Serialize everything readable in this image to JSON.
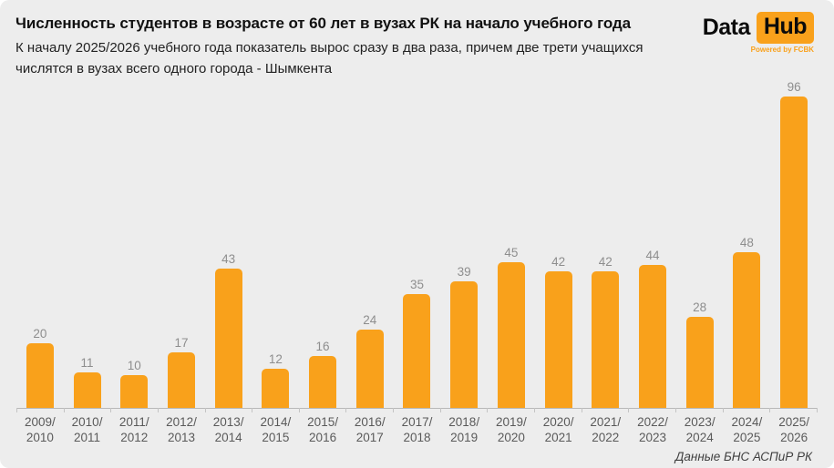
{
  "header": {
    "title": "Численность студентов в возрасте от 60 лет в вузах РК на начало учебного года",
    "subtitle": "К началу 2025/2026 учебного года показатель вырос сразу в два раза, причем две трети учащихся числятся в вузах всего одного города - Шымкента"
  },
  "logo": {
    "part1": "Data",
    "part2": "Hub",
    "tagline": "Powered by FCBK"
  },
  "footer": {
    "source": "Данные БНС АСПиР РК"
  },
  "colors": {
    "background": "#ededed",
    "accent": "#f9a11b",
    "title": "#111111",
    "subtitle": "#222222",
    "footer": "#3f3f3f",
    "axis_line": "#b8b8b8"
  },
  "chart_data": {
    "type": "bar",
    "title": "Численность студентов в возрасте от 60 лет в вузах РК на начало учебного года",
    "subtitle": "К началу 2025/2026 учебного года показатель вырос сразу в два раза, причем две трети учащихся числятся в вузах всего одного города - Шымкента",
    "categories": [
      "2009/2010",
      "2010/2011",
      "2011/2012",
      "2012/2013",
      "2013/2014",
      "2014/2015",
      "2015/2016",
      "2016/2017",
      "2017/2018",
      "2018/2019",
      "2019/2020",
      "2020/2021",
      "2021/2022",
      "2022/2023",
      "2023/2024",
      "2024/2025",
      "2025/2026"
    ],
    "values": [
      20,
      11,
      10,
      17,
      43,
      12,
      16,
      24,
      35,
      39,
      45,
      42,
      42,
      44,
      28,
      48,
      96
    ],
    "xlabel": "",
    "ylabel": "",
    "ylim": [
      0,
      100
    ],
    "grid": false,
    "legend": false,
    "value_labels": true,
    "bar_color": "#f9a11b",
    "value_label_color": "#8e8e8e",
    "axis_label_color": "#5a5a5a",
    "source_note": "Данные БНС АСПиР РК"
  }
}
